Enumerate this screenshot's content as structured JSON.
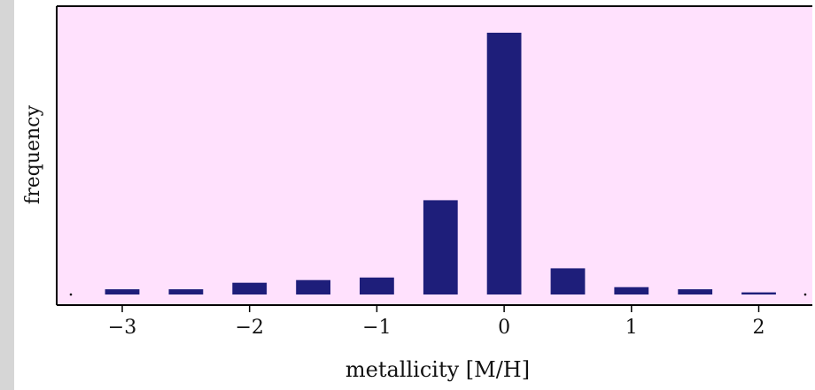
{
  "chart_data": {
    "type": "bar",
    "xlabel": "metallicity [M/H]",
    "ylabel": "frequency",
    "xlim": [
      -3.4,
      2.45
    ],
    "ylim": [
      0,
      100
    ],
    "x_ticks": [
      -3,
      -2,
      -1,
      0,
      1,
      2
    ],
    "x_tick_labels": [
      "−3",
      "−2",
      "−1",
      "0",
      "1",
      "2"
    ],
    "bar_width": 0.27,
    "x": [
      -3.0,
      -2.5,
      -2.0,
      -1.5,
      -1.0,
      -0.5,
      0.0,
      0.5,
      1.0,
      1.5,
      2.0
    ],
    "values": [
      2,
      2,
      4.5,
      5.5,
      6.5,
      36,
      100,
      10,
      2.8,
      2,
      0.8
    ],
    "grid": false,
    "colors": {
      "bar": "#1e1e7a",
      "plot_background": "#ffe1fd",
      "axis": "#000000",
      "page": "#ffffff"
    }
  }
}
